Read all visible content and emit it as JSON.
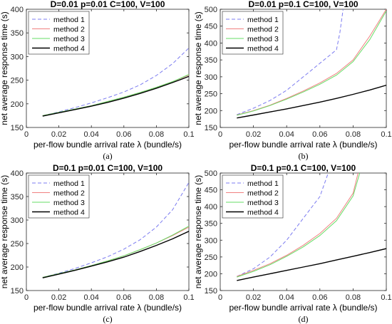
{
  "chart_data": [
    {
      "type": "line",
      "panel_label": "(a)",
      "title": "D=0.01 p=0.01 C=100, V=100",
      "xlabel": "per-flow bundle arrival rate  λ (bundle/s)",
      "ylabel": "net average response time (s)",
      "xlim": [
        0,
        0.1
      ],
      "ylim": [
        150,
        400
      ],
      "xticks": [
        0,
        0.02,
        0.04,
        0.06,
        0.08,
        0.1
      ],
      "xtick_labels": [
        "0",
        "0.02",
        "0.04",
        "0.06",
        "0.08",
        "0.1"
      ],
      "yticks": [
        150,
        200,
        250,
        300,
        350,
        400
      ],
      "ytick_labels": [
        "150",
        "200",
        "250",
        "300",
        "350",
        "400"
      ],
      "grid": false,
      "legend_position": "top-left",
      "series": [
        {
          "name": "method 1",
          "color": "#7b7bf0",
          "dash": "dashed",
          "x": [
            0.01,
            0.02,
            0.03,
            0.04,
            0.05,
            0.06,
            0.07,
            0.08,
            0.09,
            0.1
          ],
          "y": [
            175,
            183,
            192,
            202,
            213,
            225,
            240,
            260,
            285,
            318
          ]
        },
        {
          "name": "method 2",
          "color": "#f08080",
          "dash": "solid",
          "x": [
            0.01,
            0.02,
            0.03,
            0.04,
            0.05,
            0.06,
            0.07,
            0.08,
            0.09,
            0.1
          ],
          "y": [
            175,
            182,
            189,
            196,
            205,
            214,
            224,
            235,
            247,
            261
          ]
        },
        {
          "name": "method 3",
          "color": "#66dd66",
          "dash": "solid",
          "x": [
            0.01,
            0.02,
            0.03,
            0.04,
            0.05,
            0.06,
            0.07,
            0.08,
            0.09,
            0.1
          ],
          "y": [
            175,
            182,
            189,
            196,
            205,
            214,
            224,
            235,
            247,
            262
          ]
        },
        {
          "name": "method 4",
          "color": "#000000",
          "dash": "solid",
          "x": [
            0.01,
            0.02,
            0.03,
            0.04,
            0.05,
            0.06,
            0.07,
            0.08,
            0.09,
            0.1
          ],
          "y": [
            174,
            181,
            188,
            195,
            203,
            212,
            222,
            233,
            245,
            258
          ]
        }
      ]
    },
    {
      "type": "line",
      "panel_label": "(b)",
      "title": "D=0.01 p=0.1 C=100, V=100",
      "xlabel": "per-flow bundle arrival rate  λ (bundle/s)",
      "ylabel": "net average response time (s)",
      "xlim": [
        0,
        0.1
      ],
      "ylim": [
        150,
        500
      ],
      "xticks": [
        0,
        0.02,
        0.04,
        0.06,
        0.08,
        0.1
      ],
      "xtick_labels": [
        "0",
        "0.02",
        "0.04",
        "0.06",
        "0.08",
        "0.1"
      ],
      "yticks": [
        150,
        200,
        250,
        300,
        350,
        400,
        450,
        500
      ],
      "ytick_labels": [
        "150",
        "200",
        "250",
        "300",
        "350",
        "400",
        "450",
        "500"
      ],
      "grid": false,
      "legend_position": "top-left",
      "series": [
        {
          "name": "method 1",
          "color": "#7b7bf0",
          "dash": "dashed",
          "x": [
            0.01,
            0.02,
            0.03,
            0.04,
            0.05,
            0.06,
            0.07,
            0.072,
            0.074
          ],
          "y": [
            188,
            207,
            230,
            260,
            300,
            340,
            380,
            430,
            500
          ]
        },
        {
          "name": "method 2",
          "color": "#f08080",
          "dash": "solid",
          "x": [
            0.01,
            0.02,
            0.03,
            0.04,
            0.05,
            0.06,
            0.07,
            0.08,
            0.09,
            0.095,
            0.1
          ],
          "y": [
            187,
            200,
            216,
            236,
            258,
            282,
            310,
            350,
            420,
            460,
            500
          ]
        },
        {
          "name": "method 3",
          "color": "#66dd66",
          "dash": "solid",
          "x": [
            0.01,
            0.02,
            0.03,
            0.04,
            0.05,
            0.06,
            0.07,
            0.08,
            0.09,
            0.1
          ],
          "y": [
            186,
            199,
            215,
            234,
            255,
            278,
            305,
            345,
            410,
            495
          ]
        },
        {
          "name": "method 4",
          "color": "#000000",
          "dash": "solid",
          "x": [
            0.01,
            0.02,
            0.03,
            0.04,
            0.05,
            0.06,
            0.07,
            0.08,
            0.09,
            0.1
          ],
          "y": [
            178,
            187,
            196,
            205,
            215,
            225,
            236,
            248,
            261,
            275
          ]
        }
      ]
    },
    {
      "type": "line",
      "panel_label": "(c)",
      "title": "D=0.1 p=0.01 C=100, V=100",
      "xlabel": "per-flow bundle arrival rate  λ (bundle/s)",
      "ylabel": "net average response time (s)",
      "xlim": [
        0,
        0.1
      ],
      "ylim": [
        150,
        400
      ],
      "xticks": [
        0,
        0.02,
        0.04,
        0.06,
        0.08,
        0.1
      ],
      "xtick_labels": [
        "0",
        "0.02",
        "0.04",
        "0.06",
        "0.08",
        "0.1"
      ],
      "yticks": [
        150,
        200,
        250,
        300,
        350,
        400
      ],
      "ytick_labels": [
        "150",
        "200",
        "250",
        "300",
        "350",
        "400"
      ],
      "grid": false,
      "legend_position": "top-left",
      "series": [
        {
          "name": "method 1",
          "color": "#7b7bf0",
          "dash": "dashed",
          "x": [
            0.01,
            0.02,
            0.03,
            0.04,
            0.05,
            0.06,
            0.07,
            0.08,
            0.09,
            0.1
          ],
          "y": [
            178,
            187,
            197,
            209,
            222,
            238,
            258,
            285,
            322,
            380
          ]
        },
        {
          "name": "method 2",
          "color": "#f08080",
          "dash": "solid",
          "x": [
            0.01,
            0.02,
            0.03,
            0.04,
            0.05,
            0.06,
            0.07,
            0.08,
            0.09,
            0.1
          ],
          "y": [
            178,
            186,
            194,
            203,
            213,
            224,
            237,
            251,
            267,
            285
          ]
        },
        {
          "name": "method 3",
          "color": "#66dd66",
          "dash": "solid",
          "x": [
            0.01,
            0.02,
            0.03,
            0.04,
            0.05,
            0.06,
            0.07,
            0.08,
            0.09,
            0.1
          ],
          "y": [
            178,
            186,
            194,
            203,
            213,
            224,
            237,
            251,
            268,
            287
          ]
        },
        {
          "name": "method 4",
          "color": "#000000",
          "dash": "solid",
          "x": [
            0.01,
            0.02,
            0.03,
            0.04,
            0.05,
            0.06,
            0.07,
            0.08,
            0.09,
            0.1
          ],
          "y": [
            177,
            185,
            193,
            202,
            211,
            221,
            233,
            246,
            260,
            276
          ]
        }
      ]
    },
    {
      "type": "line",
      "panel_label": "(d)",
      "title": "D=0.1 p=0.1 C=100, V=100",
      "xlabel": "per-flow bundle arrival rate  λ (bundle/s)",
      "ylabel": "net average response time (s)",
      "xlim": [
        0,
        0.1
      ],
      "ylim": [
        150,
        500
      ],
      "xticks": [
        0,
        0.02,
        0.04,
        0.06,
        0.08,
        0.1
      ],
      "xtick_labels": [
        "0",
        "0.02",
        "0.04",
        "0.06",
        "0.08",
        "0.1"
      ],
      "yticks": [
        150,
        200,
        250,
        300,
        350,
        400,
        450,
        500
      ],
      "ytick_labels": [
        "150",
        "200",
        "250",
        "300",
        "350",
        "400",
        "450",
        "500"
      ],
      "grid": false,
      "legend_position": "top-left",
      "series": [
        {
          "name": "method 1",
          "color": "#7b7bf0",
          "dash": "dashed",
          "x": [
            0.01,
            0.02,
            0.03,
            0.04,
            0.05,
            0.06,
            0.065
          ],
          "y": [
            192,
            215,
            250,
            300,
            365,
            430,
            500
          ]
        },
        {
          "name": "method 2",
          "color": "#f08080",
          "dash": "solid",
          "x": [
            0.01,
            0.02,
            0.03,
            0.04,
            0.05,
            0.06,
            0.07,
            0.08,
            0.083
          ],
          "y": [
            192,
            210,
            230,
            255,
            285,
            320,
            365,
            440,
            500
          ]
        },
        {
          "name": "method 3",
          "color": "#66dd66",
          "dash": "solid",
          "x": [
            0.01,
            0.02,
            0.03,
            0.04,
            0.05,
            0.06,
            0.07,
            0.08,
            0.084
          ],
          "y": [
            190,
            207,
            227,
            252,
            280,
            314,
            358,
            432,
            500
          ]
        },
        {
          "name": "method 4",
          "color": "#000000",
          "dash": "solid",
          "x": [
            0.01,
            0.02,
            0.03,
            0.04,
            0.05,
            0.06,
            0.07,
            0.08,
            0.09,
            0.1
          ],
          "y": [
            180,
            190,
            200,
            210,
            220,
            230,
            241,
            252,
            263,
            275
          ]
        }
      ]
    }
  ]
}
